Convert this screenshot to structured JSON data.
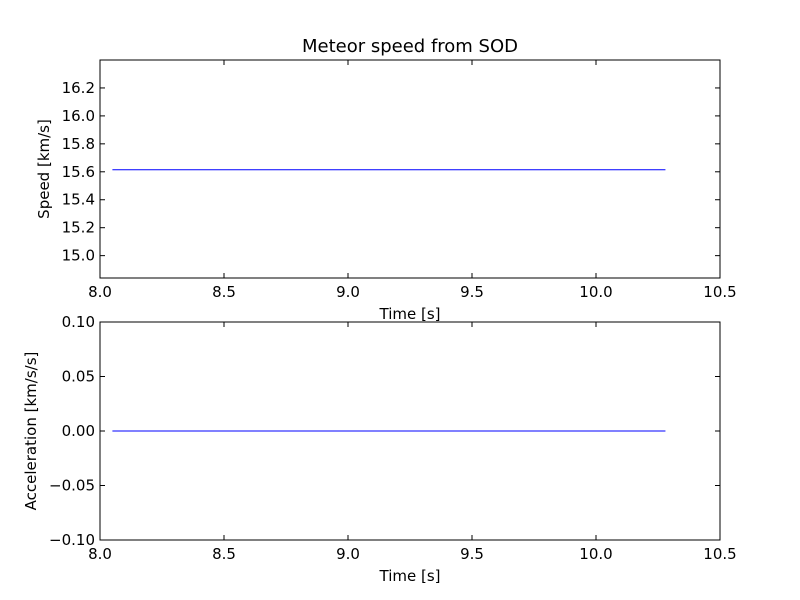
{
  "chart_data": [
    {
      "type": "line",
      "title": "Meteor speed from  SOD",
      "xlabel": "Time [s]",
      "ylabel": "Speed [km/s]",
      "xlim": [
        8.0,
        10.5
      ],
      "ylim": [
        14.84,
        16.4
      ],
      "x_ticks": [
        8.0,
        8.5,
        9.0,
        9.5,
        10.0,
        10.5
      ],
      "x_tick_labels": [
        "8.0",
        "8.5",
        "9.0",
        "9.5",
        "10.0",
        "10.5"
      ],
      "y_ticks": [
        15.0,
        15.2,
        15.4,
        15.6,
        15.8,
        16.0,
        16.2
      ],
      "y_tick_labels": [
        "15.0",
        "15.2",
        "15.4",
        "15.6",
        "15.8",
        "16.0",
        "16.2"
      ],
      "grid": false,
      "series": [
        {
          "color": "#0000ff",
          "x": [
            8.05,
            10.28
          ],
          "y": [
            15.615,
            15.615
          ]
        }
      ]
    },
    {
      "type": "line",
      "title": "",
      "xlabel": "Time [s]",
      "ylabel": "Acceleration [km/s/s]",
      "xlim": [
        8.0,
        10.5
      ],
      "ylim": [
        -0.1,
        0.1
      ],
      "x_ticks": [
        8.0,
        8.5,
        9.0,
        9.5,
        10.0,
        10.5
      ],
      "x_tick_labels": [
        "8.0",
        "8.5",
        "9.0",
        "9.5",
        "10.0",
        "10.5"
      ],
      "y_ticks": [
        -0.1,
        -0.05,
        0.0,
        0.05,
        0.1
      ],
      "y_tick_labels": [
        "−0.10",
        "−0.05",
        "0.00",
        "0.05",
        "0.10"
      ],
      "grid": false,
      "series": [
        {
          "color": "#0000ff",
          "x": [
            8.05,
            10.28
          ],
          "y": [
            0.0,
            0.0
          ]
        }
      ]
    }
  ]
}
